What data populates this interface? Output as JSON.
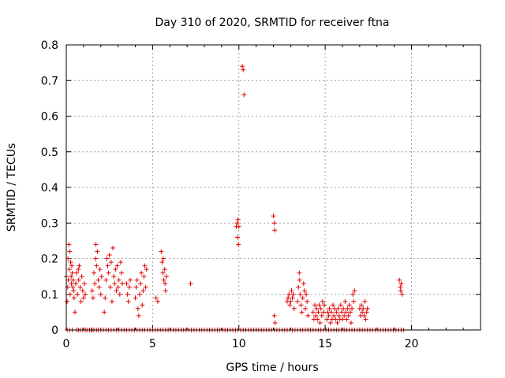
{
  "chart_data": {
    "type": "scatter",
    "title": "Day 310 of 2020, SRMTID for receiver ftna",
    "xlabel": "GPS time / hours",
    "ylabel": "SRMTID / TECUs",
    "xlim": [
      0,
      24
    ],
    "ylim": [
      0,
      0.8
    ],
    "xticks": [
      0,
      5,
      10,
      15,
      20
    ],
    "yticks": [
      0,
      0.1,
      0.2,
      0.3,
      0.4,
      0.5,
      0.6,
      0.7,
      0.8
    ],
    "xtick_labels": [
      "0",
      "5",
      "10",
      "15",
      "20"
    ],
    "ytick_labels": [
      "0",
      "0.1",
      "0.2",
      "0.3",
      "0.4",
      "0.5",
      "0.6",
      "0.7",
      "0.8"
    ],
    "grid": true,
    "marker": "+",
    "color": "#e00000",
    "series": [
      {
        "name": "SRMTID",
        "points": [
          [
            0.0,
            0.15
          ],
          [
            0.05,
            0.08
          ],
          [
            0.08,
            0.12
          ],
          [
            0.1,
            0.2
          ],
          [
            0.12,
            0.14
          ],
          [
            0.15,
            0.24
          ],
          [
            0.18,
            0.17
          ],
          [
            0.2,
            0.22
          ],
          [
            0.22,
            0.1
          ],
          [
            0.25,
            0.19
          ],
          [
            0.28,
            0.15
          ],
          [
            0.3,
            0.13
          ],
          [
            0.32,
            0.18
          ],
          [
            0.35,
            0.16
          ],
          [
            0.38,
            0.12
          ],
          [
            0.4,
            0.14
          ],
          [
            0.42,
            0.11
          ],
          [
            0.45,
            0.09
          ],
          [
            0.5,
            0.05
          ],
          [
            0.55,
            0.13
          ],
          [
            0.6,
            0.16
          ],
          [
            0.65,
            0.1
          ],
          [
            0.7,
            0.17
          ],
          [
            0.72,
            0.14
          ],
          [
            0.75,
            0.18
          ],
          [
            0.8,
            0.12
          ],
          [
            0.85,
            0.08
          ],
          [
            0.9,
            0.15
          ],
          [
            0.95,
            0.11
          ],
          [
            1.0,
            0.09
          ],
          [
            1.05,
            0.13
          ],
          [
            1.1,
            0.1
          ],
          [
            1.5,
            0.11
          ],
          [
            1.55,
            0.09
          ],
          [
            1.6,
            0.16
          ],
          [
            1.65,
            0.13
          ],
          [
            1.7,
            0.2
          ],
          [
            1.72,
            0.24
          ],
          [
            1.75,
            0.18
          ],
          [
            1.8,
            0.22
          ],
          [
            1.85,
            0.14
          ],
          [
            1.9,
            0.12
          ],
          [
            1.95,
            0.17
          ],
          [
            2.0,
            0.1
          ],
          [
            2.05,
            0.15
          ],
          [
            2.2,
            0.05
          ],
          [
            2.25,
            0.09
          ],
          [
            2.3,
            0.14
          ],
          [
            2.35,
            0.2
          ],
          [
            2.4,
            0.18
          ],
          [
            2.45,
            0.16
          ],
          [
            2.5,
            0.21
          ],
          [
            2.55,
            0.12
          ],
          [
            2.6,
            0.19
          ],
          [
            2.65,
            0.08
          ],
          [
            2.7,
            0.23
          ],
          [
            2.75,
            0.15
          ],
          [
            2.8,
            0.13
          ],
          [
            2.85,
            0.17
          ],
          [
            2.9,
            0.11
          ],
          [
            2.95,
            0.18
          ],
          [
            3.0,
            0.12
          ],
          [
            3.05,
            0.14
          ],
          [
            3.1,
            0.1
          ],
          [
            3.15,
            0.19
          ],
          [
            3.2,
            0.16
          ],
          [
            3.25,
            0.13
          ],
          [
            3.5,
            0.13
          ],
          [
            3.55,
            0.1
          ],
          [
            3.6,
            0.08
          ],
          [
            3.65,
            0.12
          ],
          [
            3.7,
            0.14
          ],
          [
            4.0,
            0.09
          ],
          [
            4.05,
            0.12
          ],
          [
            4.1,
            0.14
          ],
          [
            4.15,
            0.06
          ],
          [
            4.2,
            0.04
          ],
          [
            4.25,
            0.1
          ],
          [
            4.3,
            0.13
          ],
          [
            4.35,
            0.16
          ],
          [
            4.4,
            0.07
          ],
          [
            4.45,
            0.11
          ],
          [
            4.5,
            0.15
          ],
          [
            4.55,
            0.18
          ],
          [
            4.6,
            0.12
          ],
          [
            4.65,
            0.17
          ],
          [
            5.2,
            0.09
          ],
          [
            5.3,
            0.08
          ],
          [
            5.5,
            0.22
          ],
          [
            5.55,
            0.19
          ],
          [
            5.6,
            0.16
          ],
          [
            5.62,
            0.2
          ],
          [
            5.65,
            0.14
          ],
          [
            5.7,
            0.17
          ],
          [
            5.72,
            0.13
          ],
          [
            5.75,
            0.11
          ],
          [
            5.8,
            0.15
          ],
          [
            7.2,
            0.13
          ],
          [
            9.85,
            0.29
          ],
          [
            9.9,
            0.3
          ],
          [
            9.92,
            0.26
          ],
          [
            9.95,
            0.31
          ],
          [
            9.97,
            0.24
          ],
          [
            10.0,
            0.29
          ],
          [
            10.2,
            0.74
          ],
          [
            10.25,
            0.73
          ],
          [
            10.3,
            0.66
          ],
          [
            12.0,
            0.32
          ],
          [
            12.05,
            0.3
          ],
          [
            12.08,
            0.28
          ],
          [
            12.05,
            0.04
          ],
          [
            12.1,
            0.02
          ],
          [
            12.8,
            0.08
          ],
          [
            12.85,
            0.09
          ],
          [
            12.9,
            0.1
          ],
          [
            12.95,
            0.07
          ],
          [
            13.0,
            0.08
          ],
          [
            13.05,
            0.11
          ],
          [
            13.1,
            0.09
          ],
          [
            13.15,
            0.1
          ],
          [
            13.2,
            0.06
          ],
          [
            13.4,
            0.08
          ],
          [
            13.45,
            0.12
          ],
          [
            13.5,
            0.16
          ],
          [
            13.52,
            0.14
          ],
          [
            13.55,
            0.1
          ],
          [
            13.6,
            0.07
          ],
          [
            13.65,
            0.05
          ],
          [
            13.7,
            0.09
          ],
          [
            13.75,
            0.13
          ],
          [
            13.8,
            0.11
          ],
          [
            13.85,
            0.06
          ],
          [
            13.9,
            0.1
          ],
          [
            13.95,
            0.08
          ],
          [
            14.0,
            0.04
          ],
          [
            14.3,
            0.05
          ],
          [
            14.35,
            0.03
          ],
          [
            14.4,
            0.07
          ],
          [
            14.45,
            0.04
          ],
          [
            14.5,
            0.06
          ],
          [
            14.55,
            0.03
          ],
          [
            14.6,
            0.05
          ],
          [
            14.65,
            0.07
          ],
          [
            14.7,
            0.02
          ],
          [
            14.75,
            0.06
          ],
          [
            14.8,
            0.04
          ],
          [
            14.85,
            0.08
          ],
          [
            14.9,
            0.05
          ],
          [
            14.95,
            0.07
          ],
          [
            15.1,
            0.03
          ],
          [
            15.15,
            0.05
          ],
          [
            15.2,
            0.04
          ],
          [
            15.25,
            0.06
          ],
          [
            15.3,
            0.02
          ],
          [
            15.35,
            0.05
          ],
          [
            15.4,
            0.03
          ],
          [
            15.45,
            0.07
          ],
          [
            15.5,
            0.04
          ],
          [
            15.55,
            0.06
          ],
          [
            15.6,
            0.03
          ],
          [
            15.65,
            0.05
          ],
          [
            15.7,
            0.02
          ],
          [
            15.75,
            0.06
          ],
          [
            15.8,
            0.04
          ],
          [
            15.85,
            0.03
          ],
          [
            15.9,
            0.07
          ],
          [
            15.95,
            0.05
          ],
          [
            16.0,
            0.03
          ],
          [
            16.05,
            0.06
          ],
          [
            16.1,
            0.04
          ],
          [
            16.15,
            0.08
          ],
          [
            16.2,
            0.05
          ],
          [
            16.25,
            0.03
          ],
          [
            16.3,
            0.06
          ],
          [
            16.35,
            0.04
          ],
          [
            16.4,
            0.07
          ],
          [
            16.45,
            0.05
          ],
          [
            16.5,
            0.02
          ],
          [
            16.55,
            0.06
          ],
          [
            16.6,
            0.1
          ],
          [
            16.65,
            0.08
          ],
          [
            16.7,
            0.11
          ],
          [
            17.0,
            0.06
          ],
          [
            17.05,
            0.04
          ],
          [
            17.1,
            0.07
          ],
          [
            17.15,
            0.05
          ],
          [
            17.2,
            0.06
          ],
          [
            17.25,
            0.04
          ],
          [
            17.3,
            0.08
          ],
          [
            17.35,
            0.03
          ],
          [
            17.4,
            0.05
          ],
          [
            17.45,
            0.06
          ],
          [
            19.3,
            0.14
          ],
          [
            19.35,
            0.12
          ],
          [
            19.38,
            0.11
          ],
          [
            19.4,
            0.13
          ],
          [
            19.45,
            0.1
          ]
        ],
        "zero_points_x": [
          0.05,
          0.2,
          0.35,
          0.6,
          0.7,
          0.8,
          0.95,
          1.1,
          1.2,
          1.35,
          1.45,
          1.5,
          1.6,
          1.75,
          1.85,
          2.0,
          2.15,
          2.3,
          2.45,
          2.6,
          2.75,
          2.9,
          3.05,
          3.2,
          3.35,
          3.5,
          3.65,
          3.8,
          3.95,
          4.1,
          4.25,
          4.4,
          4.55,
          4.7,
          4.85,
          5.0,
          5.15,
          5.3,
          5.45,
          5.6,
          5.75,
          5.9,
          6.05,
          6.2,
          6.35,
          6.5,
          6.65,
          6.8,
          6.95,
          7.1,
          7.25,
          7.4,
          7.55,
          7.7,
          7.85,
          8.0,
          8.15,
          8.3,
          8.45,
          8.6,
          8.75,
          8.9,
          9.05,
          9.2,
          9.35,
          9.5,
          9.65,
          9.8,
          9.95,
          10.1,
          10.25,
          10.4,
          10.55,
          10.7,
          10.85,
          11.0,
          11.15,
          11.3,
          11.45,
          11.6,
          11.75,
          11.9,
          12.05,
          12.2,
          12.35,
          12.5,
          12.65,
          12.8,
          12.95,
          13.1,
          13.25,
          13.4,
          13.55,
          13.7,
          13.85,
          14.0,
          14.15,
          14.3,
          14.45,
          14.6,
          14.75,
          14.9,
          15.05,
          15.2,
          15.35,
          15.5,
          15.65,
          15.8,
          15.95,
          16.1,
          16.25,
          16.4,
          16.55,
          16.7,
          16.85,
          17.0,
          17.15,
          17.3,
          17.45,
          17.6,
          17.75,
          17.9,
          18.05,
          18.2,
          18.35,
          18.5,
          18.65,
          18.8,
          18.95,
          19.1,
          19.25,
          19.4,
          19.55
        ]
      }
    ]
  }
}
